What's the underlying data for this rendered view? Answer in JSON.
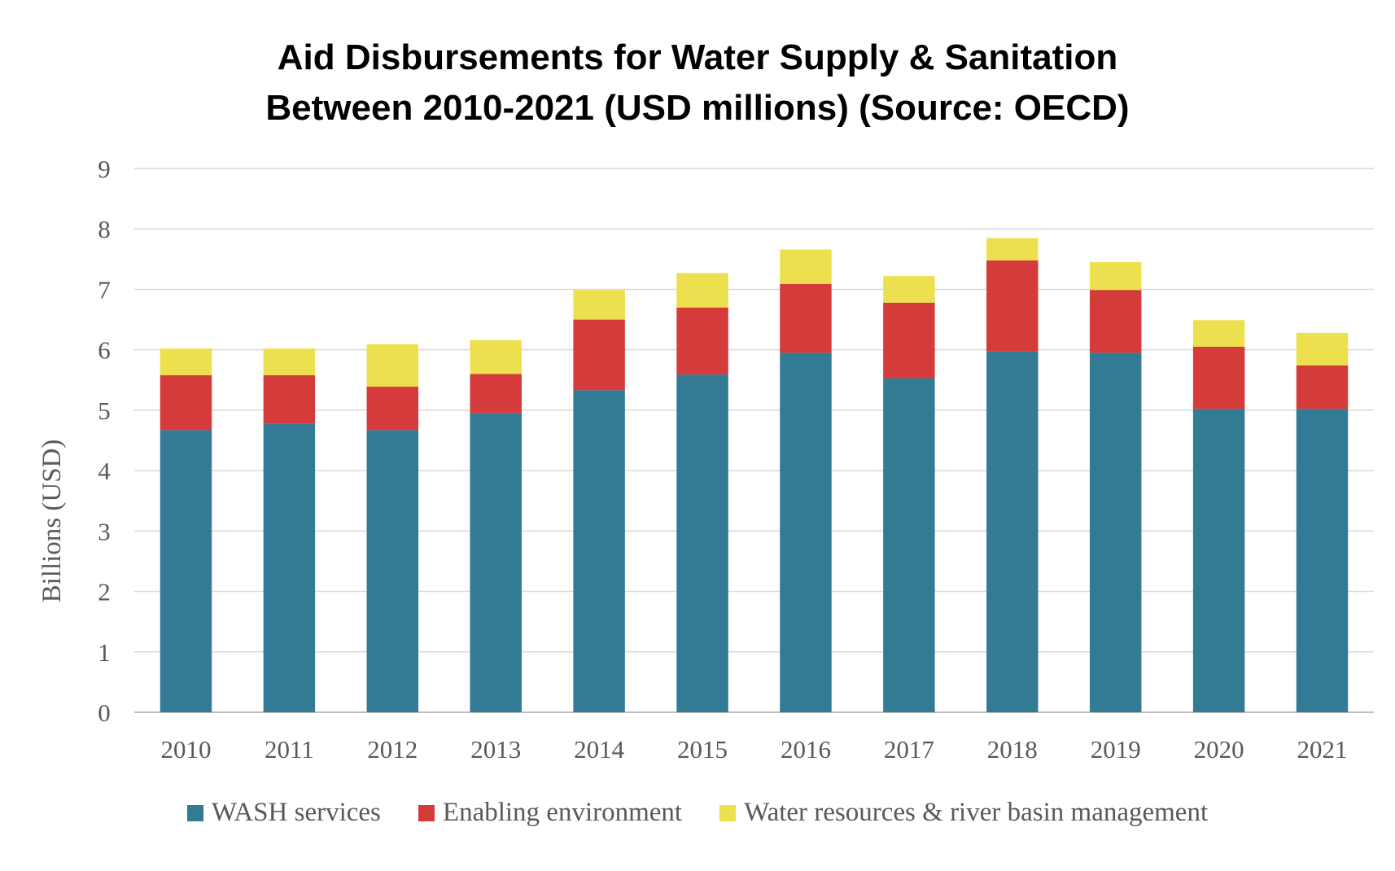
{
  "chart_data": {
    "type": "bar",
    "stacked": true,
    "title_line1": "Aid Disbursements for Water Supply & Sanitation",
    "title_line2": "Between 2010-2021 (USD millions) (Source: OECD)",
    "xlabel": "",
    "ylabel": "Billions (USD)",
    "ylim": [
      0,
      9
    ],
    "yticks": [
      0,
      1,
      2,
      3,
      4,
      5,
      6,
      7,
      8,
      9
    ],
    "grid": true,
    "legend_position": "bottom",
    "categories": [
      "2010",
      "2011",
      "2012",
      "2013",
      "2014",
      "2015",
      "2016",
      "2017",
      "2018",
      "2019",
      "2020",
      "2021"
    ],
    "series": [
      {
        "name": "WASH services",
        "color": "#337a95",
        "values": [
          4.67,
          4.78,
          4.67,
          4.95,
          5.33,
          5.59,
          5.95,
          5.53,
          5.97,
          5.95,
          5.02,
          5.02
        ]
      },
      {
        "name": "Enabling environment",
        "color": "#d53b3b",
        "values": [
          0.91,
          0.8,
          0.72,
          0.65,
          1.17,
          1.11,
          1.14,
          1.25,
          1.51,
          1.04,
          1.03,
          0.72
        ]
      },
      {
        "name": "Water resources & river basin management",
        "color": "#ede04f",
        "values": [
          0.44,
          0.44,
          0.7,
          0.56,
          0.49,
          0.57,
          0.57,
          0.44,
          0.37,
          0.46,
          0.44,
          0.54
        ]
      }
    ]
  }
}
